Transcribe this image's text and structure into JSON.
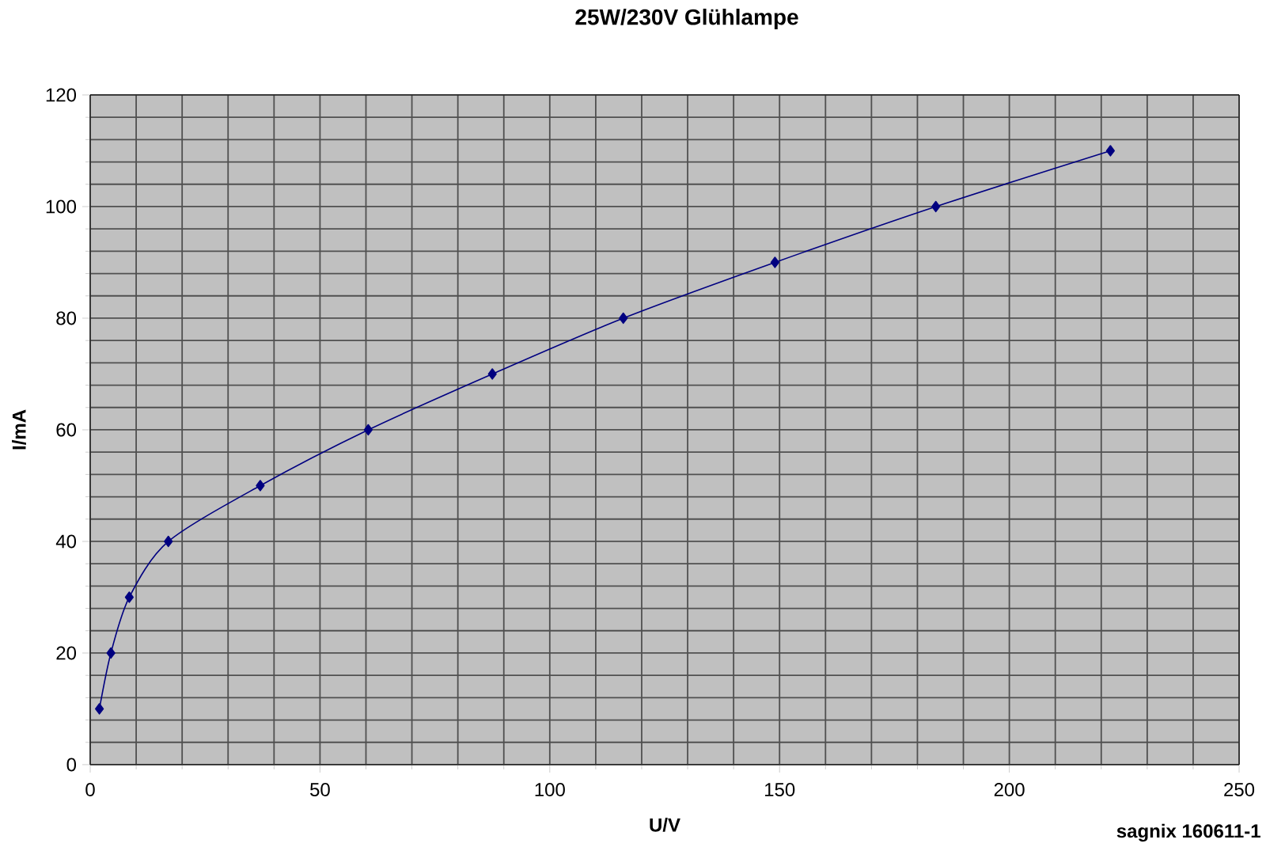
{
  "chart_data": {
    "type": "line",
    "title": "25W/230V Glühlampe",
    "xlabel": "U/V",
    "ylabel": "I/mA",
    "annotations": [
      "sagnix 160611-1"
    ],
    "x": [
      2,
      4.5,
      8.5,
      17,
      37,
      60.5,
      87.5,
      116,
      149,
      184,
      222
    ],
    "series": [
      {
        "color": "#000080",
        "values": [
          10,
          20,
          30,
          40,
          50,
          60,
          70,
          80,
          90,
          100,
          110
        ]
      }
    ],
    "xlim": [
      0,
      250
    ],
    "xticks": [
      0,
      50,
      100,
      150,
      200,
      250
    ],
    "ylim": [
      0,
      120
    ],
    "yticks": [
      0,
      20,
      40,
      60,
      80,
      100,
      120
    ],
    "grid": true,
    "marker": "diamond",
    "line_style": "solid"
  }
}
